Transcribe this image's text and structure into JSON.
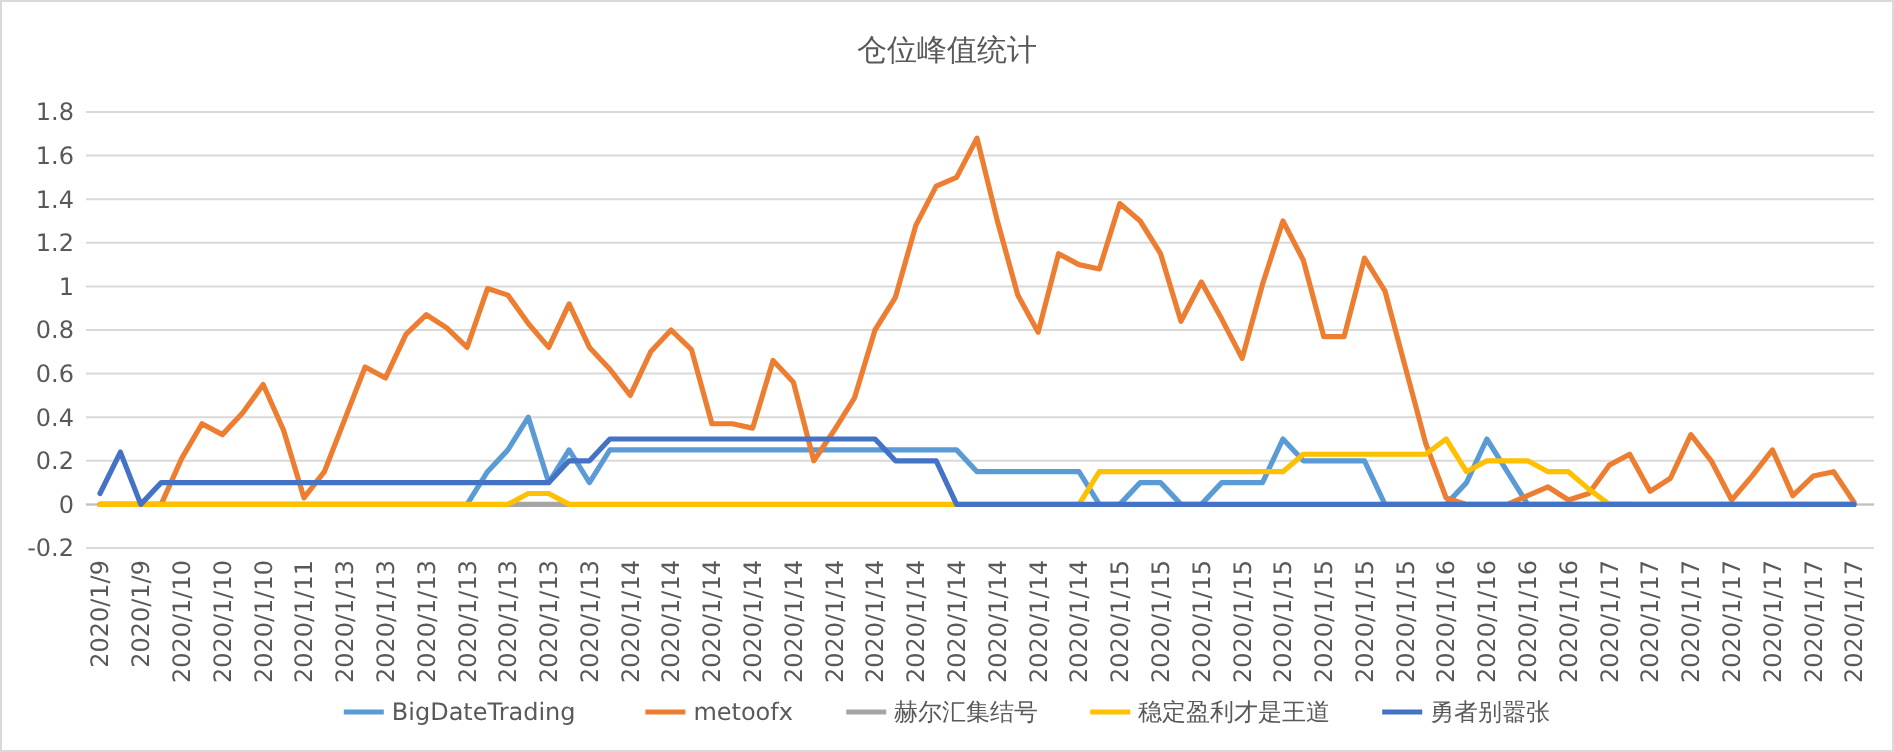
{
  "chart_data": {
    "type": "line",
    "title": "仓位峰值统计",
    "categories": [
      "2020/1/9",
      null,
      "2020/1/9",
      null,
      "2020/1/10",
      null,
      "2020/1/10",
      null,
      "2020/1/10",
      null,
      "2020/1/11",
      null,
      "2020/1/13",
      null,
      "2020/1/13",
      null,
      "2020/1/13",
      null,
      "2020/1/13",
      null,
      "2020/1/13",
      null,
      "2020/1/13",
      null,
      "2020/1/13",
      null,
      "2020/1/14",
      null,
      "2020/1/14",
      null,
      "2020/1/14",
      null,
      "2020/1/14",
      null,
      "2020/1/14",
      null,
      "2020/1/14",
      null,
      "2020/1/14",
      null,
      "2020/1/14",
      null,
      "2020/1/14",
      null,
      "2020/1/14",
      null,
      "2020/1/14",
      null,
      "2020/1/14",
      null,
      "2020/1/15",
      null,
      "2020/1/15",
      null,
      "2020/1/15",
      null,
      "2020/1/15",
      null,
      "2020/1/15",
      null,
      "2020/1/15",
      null,
      "2020/1/15",
      null,
      "2020/1/15",
      null,
      "2020/1/16",
      null,
      "2020/1/16",
      null,
      "2020/1/16",
      null,
      "2020/1/16",
      null,
      "2020/1/17",
      null,
      "2020/1/17",
      null,
      "2020/1/17",
      null,
      "2020/1/17",
      null,
      "2020/1/17",
      null,
      "2020/1/17",
      null,
      "2020/1/17"
    ],
    "series": [
      {
        "name": "BigDateTrading",
        "color": "#5b9bd5",
        "values": [
          0,
          0,
          0,
          0,
          0,
          0,
          0,
          0,
          0,
          0,
          0,
          0,
          0,
          0,
          0,
          0,
          0,
          0,
          0,
          0.15,
          0.25,
          0.4,
          0.1,
          0.25,
          0.1,
          0.25,
          0.25,
          0.25,
          0.25,
          0.25,
          0.25,
          0.25,
          0.25,
          0.25,
          0.25,
          0.25,
          0.25,
          0.25,
          0.25,
          0.25,
          0.25,
          0.25,
          0.25,
          0.15,
          0.15,
          0.15,
          0.15,
          0.15,
          0.15,
          0,
          0,
          0.1,
          0.1,
          0,
          0,
          0.1,
          0.1,
          0.1,
          0.3,
          0.2,
          0.2,
          0.2,
          0.2,
          0,
          0,
          0,
          0,
          0.1,
          0.3,
          0.15,
          0,
          0,
          0,
          0,
          0,
          0,
          0,
          0,
          0,
          0,
          0,
          0,
          0,
          0,
          0,
          0,
          0
        ]
      },
      {
        "name": "metoofx",
        "color": "#ed7d31",
        "values": [
          0,
          0,
          0,
          0,
          0.21,
          0.37,
          0.32,
          0.42,
          0.55,
          0.34,
          0.03,
          0.15,
          0.39,
          0.63,
          0.58,
          0.78,
          0.87,
          0.81,
          0.72,
          0.99,
          0.96,
          0.83,
          0.72,
          0.92,
          0.72,
          0.62,
          0.5,
          0.7,
          0.8,
          0.71,
          0.37,
          0.37,
          0.35,
          0.66,
          0.56,
          0.2,
          0.34,
          0.49,
          0.8,
          0.95,
          1.28,
          1.46,
          1.5,
          1.68,
          1.3,
          0.96,
          0.79,
          1.15,
          1.1,
          1.08,
          1.38,
          1.3,
          1.15,
          0.84,
          1.02,
          0.85,
          0.67,
          1.01,
          1.3,
          1.12,
          0.77,
          0.77,
          1.13,
          0.98,
          0.63,
          0.28,
          0.03,
          0,
          0,
          0,
          0.04,
          0.08,
          0.02,
          0.05,
          0.18,
          0.23,
          0.06,
          0.12,
          0.32,
          0.2,
          0.02,
          0.13,
          0.25,
          0.04,
          0.13,
          0.15,
          0.01
        ]
      },
      {
        "name": "赫尔汇集结号",
        "color": "#a5a5a5",
        "values": [
          null,
          null,
          null,
          null,
          null,
          null,
          null,
          null,
          null,
          null,
          null,
          null,
          null,
          null,
          null,
          null,
          null,
          null,
          null,
          null,
          0,
          0,
          0,
          0,
          null,
          null,
          null,
          null,
          null,
          null,
          null,
          null,
          null,
          null,
          null,
          null,
          null,
          null,
          null,
          null,
          null,
          null,
          null,
          null,
          null,
          null,
          null,
          null,
          null,
          null,
          null,
          null,
          null,
          null,
          null,
          null,
          null,
          null,
          null,
          null,
          null,
          null,
          null,
          null,
          null,
          null,
          null,
          null,
          null,
          null,
          null,
          null,
          null,
          null,
          null,
          null,
          null,
          null,
          null,
          null,
          null,
          null,
          null,
          null,
          null,
          null,
          null
        ]
      },
      {
        "name": "稳定盈利才是王道",
        "color": "#ffc000",
        "values": [
          0,
          0,
          0,
          0,
          0,
          0,
          0,
          0,
          0,
          0,
          0,
          0,
          0,
          0,
          0,
          0,
          0,
          0,
          0,
          0,
          0,
          0.05,
          0.05,
          0,
          0,
          0,
          0,
          0,
          0,
          0,
          0,
          0,
          0,
          0,
          0,
          0,
          0,
          0,
          0,
          0,
          0,
          0,
          0,
          0,
          0,
          0,
          0,
          0,
          0,
          0.15,
          0.15,
          0.15,
          0.15,
          0.15,
          0.15,
          0.15,
          0.15,
          0.15,
          0.15,
          0.23,
          0.23,
          0.23,
          0.23,
          0.23,
          0.23,
          0.23,
          0.3,
          0.15,
          0.2,
          0.2,
          0.2,
          0.15,
          0.15,
          0.07,
          0,
          0,
          null,
          null,
          null,
          null,
          null,
          null,
          null,
          null,
          null,
          null,
          null
        ]
      },
      {
        "name": "勇者别嚣张",
        "color": "#4472c4",
        "values": [
          0.05,
          0.24,
          0,
          0.1,
          0.1,
          0.1,
          0.1,
          0.1,
          0.1,
          0.1,
          0.1,
          0.1,
          0.1,
          0.1,
          0.1,
          0.1,
          0.1,
          0.1,
          0.1,
          0.1,
          0.1,
          0.1,
          0.1,
          0.2,
          0.2,
          0.3,
          0.3,
          0.3,
          0.3,
          0.3,
          0.3,
          0.3,
          0.3,
          0.3,
          0.3,
          0.3,
          0.3,
          0.3,
          0.3,
          0.2,
          0.2,
          0.2,
          0,
          0,
          0,
          0,
          0,
          0,
          0,
          0,
          0,
          0,
          0,
          0,
          0,
          0,
          0,
          0,
          0,
          0,
          0,
          0,
          0,
          0,
          0,
          0,
          0,
          0,
          0,
          0,
          0,
          0,
          0,
          0,
          0,
          0,
          0,
          0,
          0,
          0,
          0,
          0,
          0,
          0,
          0,
          0,
          0
        ]
      }
    ],
    "ylim": [
      -0.2,
      1.8
    ],
    "yticks": [
      -0.2,
      0,
      0.2,
      0.4,
      0.6,
      0.8,
      1,
      1.2,
      1.4,
      1.6,
      1.8
    ],
    "grid": "y",
    "legend": "bottom",
    "marker": "none",
    "line_style": "solid"
  }
}
